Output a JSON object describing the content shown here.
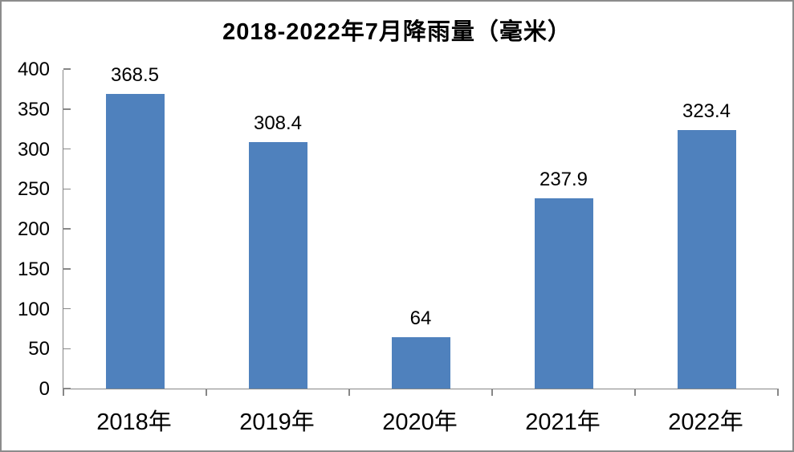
{
  "frame": {
    "border_color": "#8C8C8C",
    "background": "#FFFFFF"
  },
  "chart_data": {
    "type": "bar",
    "title": "2018-2022年7月降雨量（毫米）",
    "categories": [
      "2018年",
      "2019年",
      "2020年",
      "2021年",
      "2022年"
    ],
    "values": [
      368.5,
      308.4,
      64,
      237.9,
      323.4
    ],
    "value_labels": [
      "368.5",
      "308.4",
      "64",
      "237.9",
      "323.4"
    ],
    "xlabel": "",
    "ylabel": "",
    "ylim": [
      0,
      400
    ],
    "y_ticks": [
      0,
      50,
      100,
      150,
      200,
      250,
      300,
      350,
      400
    ],
    "grid": false,
    "legend": "none",
    "bar_color": "#4F81BD",
    "axis_color": "#878787",
    "text_color": "#000000"
  }
}
